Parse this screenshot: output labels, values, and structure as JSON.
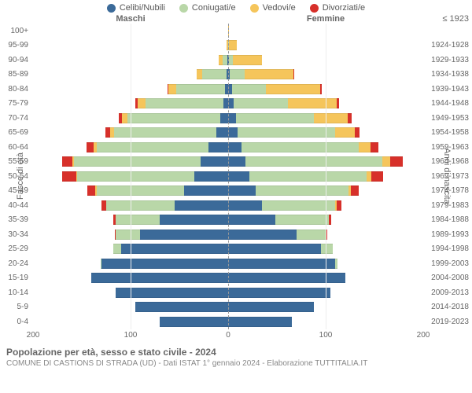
{
  "legend": [
    {
      "label": "Celibi/Nubili",
      "color": "#3b6a99"
    },
    {
      "label": "Coniugati/e",
      "color": "#b9d7a8"
    },
    {
      "label": "Vedovi/e",
      "color": "#f5c55b"
    },
    {
      "label": "Divorziati/e",
      "color": "#d7302a"
    }
  ],
  "headers": {
    "male": "Maschi",
    "female": "Femmine",
    "first_birth": "≤ 1923"
  },
  "axis": {
    "left_label": "Fasce di età",
    "right_label": "Anni di nascita",
    "max": 200,
    "ticks": [
      200,
      100,
      0,
      100,
      200
    ]
  },
  "colors": {
    "celibi": "#3b6a99",
    "coniugati": "#b9d7a8",
    "vedovi": "#f5c55b",
    "divorziati": "#d7302a",
    "grid": "#eeeeee",
    "center": "#999999",
    "bg": "#ffffff"
  },
  "caption": {
    "title": "Popolazione per età, sesso e stato civile - 2024",
    "sub": "COMUNE DI CASTIONS DI STRADA (UD) - Dati ISTAT 1° gennaio 2024 - Elaborazione TUTTITALIA.IT"
  },
  "rows": [
    {
      "age": "100+",
      "birth": "≤ 1923",
      "m": [
        0,
        0,
        0,
        0
      ],
      "f": [
        0,
        0,
        1,
        0
      ]
    },
    {
      "age": "95-99",
      "birth": "1924-1928",
      "m": [
        0,
        0,
        2,
        0
      ],
      "f": [
        0,
        1,
        8,
        0
      ]
    },
    {
      "age": "90-94",
      "birth": "1929-1933",
      "m": [
        1,
        5,
        4,
        0
      ],
      "f": [
        1,
        4,
        30,
        0
      ]
    },
    {
      "age": "85-89",
      "birth": "1934-1938",
      "m": [
        2,
        25,
        5,
        0
      ],
      "f": [
        2,
        15,
        50,
        1
      ]
    },
    {
      "age": "80-84",
      "birth": "1939-1943",
      "m": [
        3,
        50,
        8,
        1
      ],
      "f": [
        4,
        35,
        55,
        2
      ]
    },
    {
      "age": "75-79",
      "birth": "1944-1948",
      "m": [
        5,
        80,
        8,
        2
      ],
      "f": [
        6,
        55,
        50,
        3
      ]
    },
    {
      "age": "70-74",
      "birth": "1949-1953",
      "m": [
        8,
        95,
        6,
        3
      ],
      "f": [
        8,
        80,
        35,
        4
      ]
    },
    {
      "age": "65-69",
      "birth": "1954-1958",
      "m": [
        12,
        105,
        4,
        5
      ],
      "f": [
        10,
        100,
        20,
        5
      ]
    },
    {
      "age": "60-64",
      "birth": "1959-1963",
      "m": [
        20,
        115,
        3,
        7
      ],
      "f": [
        14,
        120,
        12,
        8
      ]
    },
    {
      "age": "55-59",
      "birth": "1964-1968",
      "m": [
        28,
        130,
        2,
        10
      ],
      "f": [
        18,
        140,
        8,
        13
      ]
    },
    {
      "age": "50-54",
      "birth": "1969-1973",
      "m": [
        35,
        120,
        1,
        14
      ],
      "f": [
        22,
        120,
        5,
        12
      ]
    },
    {
      "age": "45-49",
      "birth": "1974-1978",
      "m": [
        45,
        90,
        1,
        8
      ],
      "f": [
        28,
        95,
        3,
        8
      ]
    },
    {
      "age": "40-44",
      "birth": "1979-1983",
      "m": [
        55,
        70,
        0,
        5
      ],
      "f": [
        35,
        75,
        1,
        5
      ]
    },
    {
      "age": "35-39",
      "birth": "1984-1988",
      "m": [
        70,
        45,
        0,
        3
      ],
      "f": [
        48,
        55,
        0,
        3
      ]
    },
    {
      "age": "30-34",
      "birth": "1989-1993",
      "m": [
        90,
        25,
        0,
        1
      ],
      "f": [
        70,
        30,
        0,
        2
      ]
    },
    {
      "age": "25-29",
      "birth": "1994-1998",
      "m": [
        110,
        8,
        0,
        0
      ],
      "f": [
        95,
        12,
        0,
        0
      ]
    },
    {
      "age": "20-24",
      "birth": "1999-2003",
      "m": [
        130,
        1,
        0,
        0
      ],
      "f": [
        110,
        2,
        0,
        0
      ]
    },
    {
      "age": "15-19",
      "birth": "2004-2008",
      "m": [
        140,
        0,
        0,
        0
      ],
      "f": [
        120,
        0,
        0,
        0
      ]
    },
    {
      "age": "10-14",
      "birth": "2009-2013",
      "m": [
        115,
        0,
        0,
        0
      ],
      "f": [
        105,
        0,
        0,
        0
      ]
    },
    {
      "age": "5-9",
      "birth": "2014-2018",
      "m": [
        95,
        0,
        0,
        0
      ],
      "f": [
        88,
        0,
        0,
        0
      ]
    },
    {
      "age": "0-4",
      "birth": "2019-2023",
      "m": [
        70,
        0,
        0,
        0
      ],
      "f": [
        65,
        0,
        0,
        0
      ]
    }
  ]
}
